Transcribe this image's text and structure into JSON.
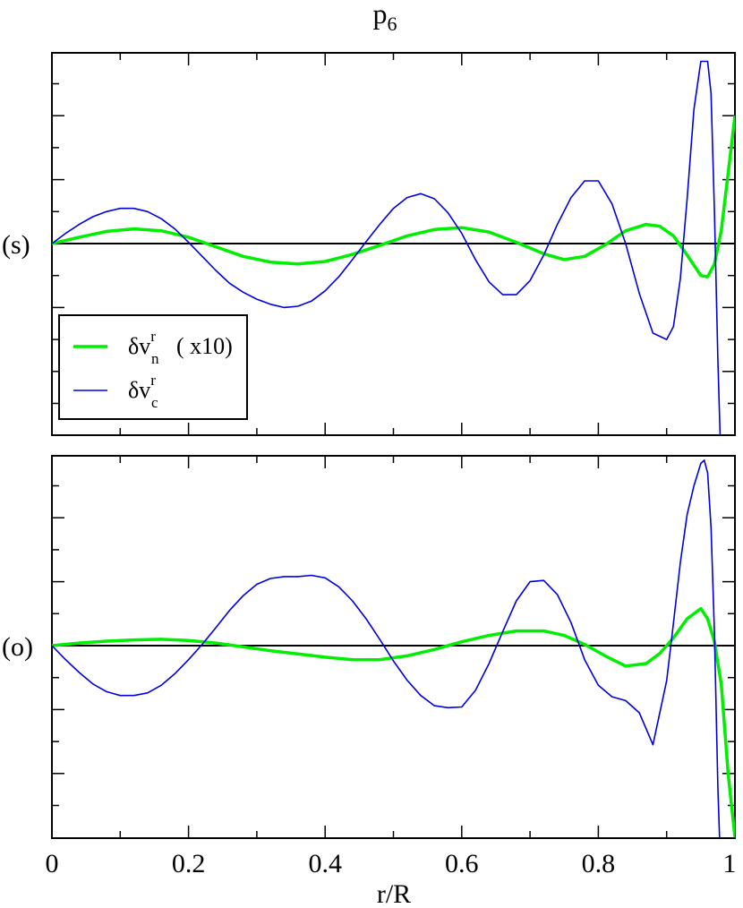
{
  "title": {
    "main": "p",
    "sub": "6"
  },
  "xlabel": "r/R",
  "colors": {
    "green": "#00ee00",
    "blue": "#0000dd",
    "axis": "#000000",
    "frame": "#000000"
  },
  "chart_data": [
    {
      "type": "line",
      "panel_label": "(s)",
      "xlim": [
        0,
        1
      ],
      "grid": false,
      "legend_position": "top-left below midline",
      "legend": [
        {
          "series": "dvn",
          "symbol": "δ",
          "base": "v",
          "sup": "r",
          "sub": "n",
          "suffix": "( x10)"
        },
        {
          "series": "dvc",
          "symbol": "δ",
          "base": "v",
          "sup": "r",
          "sub": "c",
          "suffix": ""
        }
      ],
      "series": [
        {
          "key": "dvn",
          "color": "#00ee00",
          "x": [
            0,
            0.04,
            0.08,
            0.12,
            0.16,
            0.2,
            0.24,
            0.28,
            0.32,
            0.36,
            0.4,
            0.44,
            0.48,
            0.52,
            0.56,
            0.6,
            0.64,
            0.68,
            0.72,
            0.75,
            0.78,
            0.81,
            0.84,
            0.87,
            0.89,
            0.91,
            0.93,
            0.95,
            0.96,
            0.97,
            0.98,
            0.99,
            1.0
          ],
          "y": [
            0,
            0.1,
            0.19,
            0.23,
            0.2,
            0.1,
            -0.05,
            -0.2,
            -0.29,
            -0.32,
            -0.28,
            -0.17,
            -0.03,
            0.12,
            0.22,
            0.25,
            0.18,
            0.02,
            -0.16,
            -0.25,
            -0.2,
            -0.02,
            0.2,
            0.3,
            0.27,
            0.12,
            -0.18,
            -0.5,
            -0.52,
            -0.32,
            0.2,
            1.1,
            2.0
          ]
        },
        {
          "key": "dvc",
          "color": "#0000dd",
          "x": [
            0,
            0.02,
            0.04,
            0.06,
            0.08,
            0.1,
            0.12,
            0.14,
            0.16,
            0.18,
            0.2,
            0.22,
            0.24,
            0.26,
            0.28,
            0.3,
            0.32,
            0.34,
            0.36,
            0.38,
            0.4,
            0.42,
            0.44,
            0.46,
            0.48,
            0.5,
            0.52,
            0.54,
            0.56,
            0.58,
            0.6,
            0.62,
            0.64,
            0.66,
            0.68,
            0.7,
            0.72,
            0.74,
            0.76,
            0.78,
            0.8,
            0.82,
            0.84,
            0.86,
            0.88,
            0.9,
            0.91,
            0.92,
            0.93,
            0.94,
            0.95,
            0.96,
            0.965,
            0.97,
            0.975,
            0.98
          ],
          "y": [
            0,
            0.16,
            0.3,
            0.42,
            0.5,
            0.55,
            0.55,
            0.5,
            0.39,
            0.23,
            0.02,
            -0.2,
            -0.42,
            -0.62,
            -0.76,
            -0.87,
            -0.95,
            -1.0,
            -0.98,
            -0.9,
            -0.74,
            -0.52,
            -0.25,
            0.03,
            0.3,
            0.55,
            0.72,
            0.78,
            0.7,
            0.48,
            0.16,
            -0.25,
            -0.6,
            -0.8,
            -0.8,
            -0.58,
            -0.18,
            0.3,
            0.72,
            0.98,
            0.98,
            0.62,
            0.0,
            -0.78,
            -1.4,
            -1.5,
            -1.3,
            -0.55,
            0.7,
            2.1,
            2.85,
            2.85,
            2.35,
            0.5,
            -1.8,
            -3.6
          ]
        }
      ]
    },
    {
      "type": "line",
      "panel_label": "(o)",
      "xlim": [
        0,
        1
      ],
      "grid": false,
      "series": [
        {
          "key": "dvn",
          "color": "#00ee00",
          "x": [
            0,
            0.04,
            0.08,
            0.12,
            0.16,
            0.2,
            0.24,
            0.28,
            0.32,
            0.36,
            0.4,
            0.44,
            0.48,
            0.52,
            0.56,
            0.6,
            0.64,
            0.68,
            0.72,
            0.75,
            0.78,
            0.81,
            0.84,
            0.87,
            0.89,
            0.91,
            0.93,
            0.95,
            0.96,
            0.97,
            0.98,
            0.99,
            1.0
          ],
          "y": [
            0,
            0.04,
            0.07,
            0.09,
            0.1,
            0.08,
            0.04,
            -0.02,
            -0.08,
            -0.13,
            -0.18,
            -0.22,
            -0.22,
            -0.16,
            -0.06,
            0.06,
            0.16,
            0.23,
            0.23,
            0.16,
            0.02,
            -0.16,
            -0.32,
            -0.28,
            -0.12,
            0.12,
            0.42,
            0.58,
            0.42,
            0.06,
            -0.6,
            -2.0,
            -3.0
          ]
        },
        {
          "key": "dvc",
          "color": "#0000dd",
          "x": [
            0,
            0.02,
            0.04,
            0.06,
            0.08,
            0.1,
            0.12,
            0.14,
            0.16,
            0.18,
            0.2,
            0.22,
            0.24,
            0.26,
            0.28,
            0.3,
            0.32,
            0.34,
            0.36,
            0.38,
            0.4,
            0.42,
            0.44,
            0.46,
            0.48,
            0.5,
            0.52,
            0.54,
            0.56,
            0.58,
            0.6,
            0.62,
            0.64,
            0.66,
            0.68,
            0.7,
            0.72,
            0.74,
            0.76,
            0.78,
            0.8,
            0.82,
            0.84,
            0.86,
            0.88,
            0.9,
            0.91,
            0.92,
            0.93,
            0.94,
            0.95,
            0.955,
            0.96,
            0.965,
            0.97,
            0.975,
            0.98
          ],
          "y": [
            0,
            -0.22,
            -0.42,
            -0.6,
            -0.72,
            -0.78,
            -0.78,
            -0.74,
            -0.62,
            -0.44,
            -0.22,
            0.02,
            0.28,
            0.55,
            0.78,
            0.96,
            1.05,
            1.08,
            1.08,
            1.1,
            1.06,
            0.92,
            0.7,
            0.42,
            0.1,
            -0.24,
            -0.54,
            -0.78,
            -0.94,
            -0.97,
            -0.96,
            -0.7,
            -0.28,
            0.22,
            0.7,
            1.0,
            1.02,
            0.8,
            0.36,
            -0.22,
            -0.62,
            -0.8,
            -0.86,
            -1.05,
            -1.55,
            -0.55,
            0.35,
            1.3,
            2.05,
            2.5,
            2.85,
            2.9,
            2.7,
            1.85,
            0.2,
            -2.2,
            -3.8
          ]
        }
      ]
    }
  ],
  "x_ticks": [
    "0",
    "0.2",
    "0.4",
    "0.6",
    "0.8",
    "1"
  ]
}
